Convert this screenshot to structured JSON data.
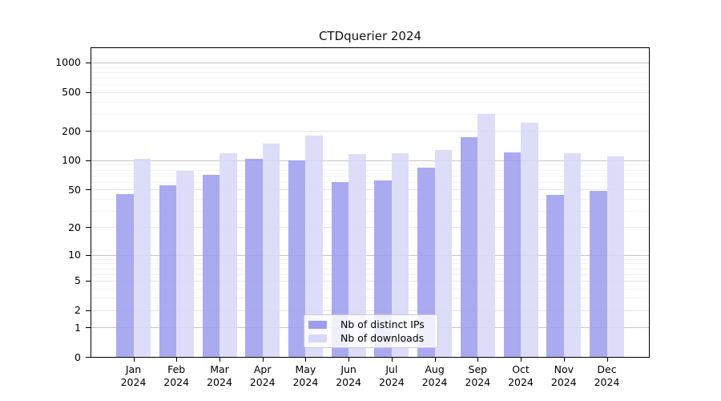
{
  "chart_data": {
    "type": "bar",
    "title": "CTDquerier 2024",
    "categories": [
      "Jan\n2024",
      "Feb\n2024",
      "Mar\n2024",
      "Apr\n2024",
      "May\n2024",
      "Jun\n2024",
      "Jul\n2024",
      "Aug\n2024",
      "Sep\n2024",
      "Oct\n2024",
      "Nov\n2024",
      "Dec\n2024"
    ],
    "series": [
      {
        "name": "Nb of distinct IPs",
        "color": "#9e9eef",
        "values": [
          45,
          55,
          71,
          103,
          100,
          59,
          62,
          84,
          174,
          121,
          44,
          48
        ]
      },
      {
        "name": "Nb of downloads",
        "color": "#d8d8f8",
        "values": [
          104,
          78,
          119,
          148,
          181,
          116,
          118,
          128,
          300,
          243,
          118,
          109
        ]
      }
    ],
    "xlabel": "",
    "ylabel": "",
    "yscale": "log1p",
    "ylim": [
      0,
      1400
    ],
    "yticks": [
      0,
      1,
      2,
      5,
      10,
      20,
      50,
      100,
      200,
      500,
      1000
    ],
    "grid": true,
    "legend_position": "lower-center-inside"
  },
  "colors": {
    "axis": "#000000",
    "grid_decade": "#c6c6c6",
    "grid_mid": "#e4e4e4",
    "grid_minor": "#f2f2f2",
    "legend_border": "#cccccc"
  }
}
